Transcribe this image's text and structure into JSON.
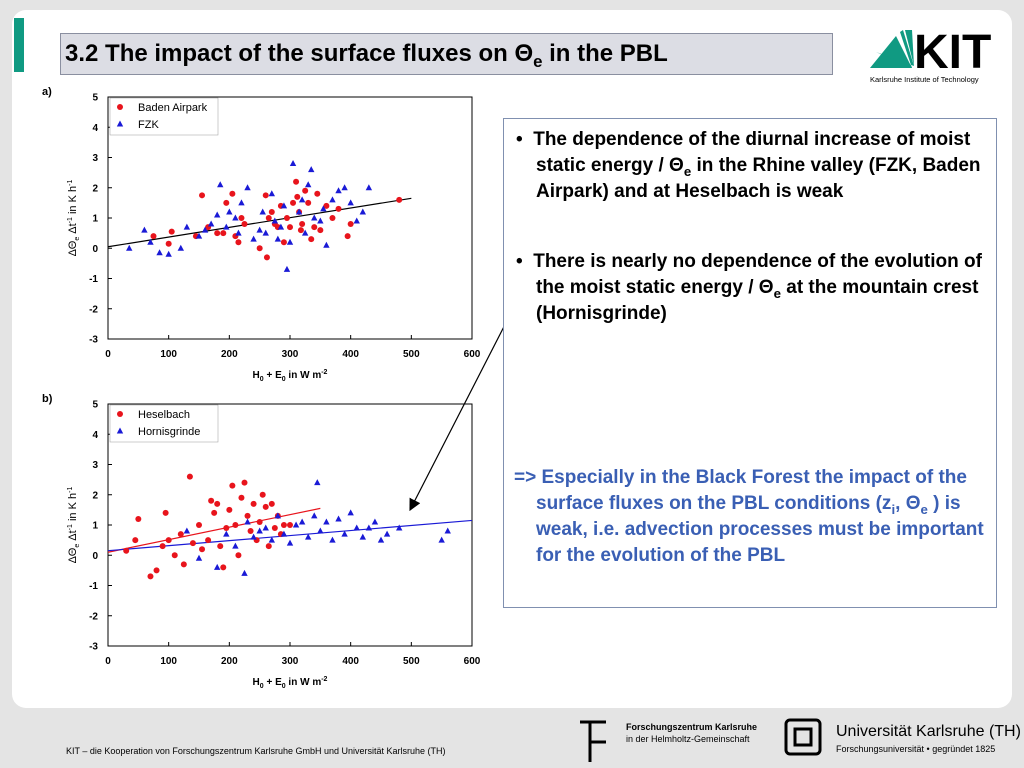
{
  "header": {
    "title": [
      {
        "text": "3.2 The impact of the surface fluxes on Θ"
      },
      {
        "text": "e",
        "shift": "sub"
      },
      {
        "text": " in the PBL"
      }
    ]
  },
  "logo": {
    "name": "KIT",
    "subtitle": "Karlsruhe Institute of Technology"
  },
  "chart_data": [
    {
      "type": "scatter",
      "panel_label": "a)",
      "x_label": [
        {
          "text": "H"
        },
        {
          "text": "0",
          "shift": "sub"
        },
        {
          "text": " + E"
        },
        {
          "text": "0",
          "shift": "sub"
        },
        {
          "text": " in W m"
        },
        {
          "text": "-2",
          "shift": "sup"
        }
      ],
      "y_label": [
        {
          "text": "ΔΘ"
        },
        {
          "text": "e",
          "shift": "sub"
        },
        {
          "text": " Δt"
        },
        {
          "text": "-1",
          "shift": "sup"
        },
        {
          "text": " in K h"
        },
        {
          "text": "-1",
          "shift": "sup"
        }
      ],
      "xlim": [
        0,
        600
      ],
      "ylim": [
        -3,
        5
      ],
      "xticks": [
        0,
        100,
        200,
        300,
        400,
        500,
        600
      ],
      "yticks": [
        -3,
        -2,
        -1,
        0,
        1,
        2,
        3,
        4,
        5
      ],
      "legend": "upper left",
      "series": [
        {
          "name": "Baden Airpark",
          "color": "#e8141c",
          "marker": "circle",
          "x": [
            75,
            100,
            105,
            145,
            155,
            165,
            180,
            190,
            195,
            205,
            210,
            215,
            220,
            225,
            250,
            260,
            262,
            265,
            270,
            275,
            280,
            285,
            290,
            295,
            300,
            305,
            310,
            312,
            315,
            318,
            320,
            325,
            330,
            335,
            340,
            345,
            350,
            360,
            370,
            380,
            395,
            400,
            480
          ],
          "values": [
            0.4,
            0.15,
            0.55,
            0.4,
            1.75,
            0.7,
            0.5,
            0.5,
            1.5,
            1.8,
            0.4,
            0.2,
            1.0,
            0.8,
            0.0,
            1.75,
            -0.3,
            1.0,
            1.2,
            0.8,
            0.7,
            1.4,
            0.2,
            1.0,
            0.7,
            1.5,
            2.2,
            1.7,
            1.2,
            0.6,
            0.8,
            1.9,
            1.5,
            0.3,
            0.7,
            1.8,
            0.6,
            1.4,
            1.0,
            1.3,
            0.4,
            0.8,
            1.6
          ]
        },
        {
          "name": "FZK",
          "color": "#1a1ad6",
          "marker": "triangle",
          "x": [
            35,
            60,
            70,
            85,
            100,
            120,
            130,
            150,
            160,
            170,
            180,
            185,
            195,
            200,
            210,
            215,
            220,
            230,
            240,
            250,
            255,
            260,
            270,
            275,
            280,
            285,
            290,
            295,
            300,
            305,
            315,
            320,
            325,
            330,
            335,
            340,
            350,
            355,
            360,
            370,
            380,
            390,
            400,
            410,
            420,
            430
          ],
          "values": [
            0.0,
            0.6,
            0.2,
            -0.15,
            -0.2,
            0.0,
            0.7,
            0.4,
            0.6,
            0.8,
            1.1,
            2.1,
            0.7,
            1.2,
            1.0,
            0.5,
            1.5,
            2.0,
            0.3,
            0.6,
            1.2,
            0.5,
            1.8,
            0.9,
            0.3,
            0.7,
            1.4,
            -0.7,
            0.2,
            2.8,
            1.2,
            1.6,
            0.5,
            2.1,
            2.6,
            1.0,
            0.9,
            1.3,
            0.1,
            1.6,
            1.9,
            2.0,
            1.5,
            0.9,
            1.2,
            2.0
          ]
        }
      ],
      "trend_lines": [
        {
          "color": "#000000",
          "x": [
            0,
            500
          ],
          "values": [
            0.05,
            1.65
          ]
        }
      ]
    },
    {
      "type": "scatter",
      "panel_label": "b)",
      "x_label": [
        {
          "text": "H"
        },
        {
          "text": "0",
          "shift": "sub"
        },
        {
          "text": " + E"
        },
        {
          "text": "0",
          "shift": "sub"
        },
        {
          "text": " in W m"
        },
        {
          "text": "-2",
          "shift": "sup"
        }
      ],
      "y_label": [
        {
          "text": "ΔΘ"
        },
        {
          "text": "e",
          "shift": "sub"
        },
        {
          "text": " Δt"
        },
        {
          "text": "-1",
          "shift": "sup"
        },
        {
          "text": " in K h"
        },
        {
          "text": "-1",
          "shift": "sup"
        }
      ],
      "xlim": [
        0,
        600
      ],
      "ylim": [
        -3,
        5
      ],
      "xticks": [
        0,
        100,
        200,
        300,
        400,
        500,
        600
      ],
      "yticks": [
        -3,
        -2,
        -1,
        0,
        1,
        2,
        3,
        4,
        5
      ],
      "legend": "upper left",
      "series": [
        {
          "name": "Heselbach",
          "color": "#e8141c",
          "marker": "circle",
          "x": [
            30,
            45,
            50,
            70,
            80,
            90,
            95,
            100,
            110,
            120,
            125,
            135,
            140,
            150,
            155,
            165,
            170,
            175,
            180,
            185,
            190,
            195,
            200,
            205,
            210,
            215,
            220,
            225,
            230,
            235,
            240,
            245,
            250,
            255,
            260,
            265,
            270,
            275,
            280,
            285,
            290,
            300
          ],
          "values": [
            0.15,
            0.5,
            1.2,
            -0.7,
            -0.5,
            0.3,
            1.4,
            0.5,
            0.0,
            0.7,
            -0.3,
            2.6,
            0.4,
            1.0,
            0.2,
            0.5,
            1.8,
            1.4,
            1.7,
            0.3,
            -0.4,
            0.9,
            1.5,
            2.3,
            1.0,
            0.0,
            1.9,
            2.4,
            1.3,
            0.8,
            1.7,
            0.5,
            1.1,
            2.0,
            1.6,
            0.3,
            1.7,
            0.9,
            1.3,
            0.7,
            1.0,
            1.0
          ]
        },
        {
          "name": "Hornisgrinde",
          "color": "#1a1ad6",
          "marker": "triangle",
          "x": [
            130,
            150,
            180,
            195,
            210,
            225,
            230,
            240,
            250,
            260,
            270,
            280,
            290,
            300,
            310,
            320,
            330,
            340,
            345,
            350,
            360,
            370,
            380,
            390,
            400,
            410,
            420,
            430,
            440,
            450,
            460,
            480,
            550,
            560
          ],
          "values": [
            0.8,
            -0.1,
            -0.4,
            0.7,
            0.3,
            -0.6,
            1.1,
            0.6,
            0.8,
            0.9,
            0.5,
            1.3,
            0.7,
            0.4,
            1.0,
            1.1,
            0.6,
            1.3,
            2.4,
            0.8,
            1.1,
            0.5,
            1.2,
            0.7,
            1.4,
            0.9,
            0.6,
            0.9,
            1.1,
            0.5,
            0.7,
            0.9,
            0.5,
            0.8
          ]
        }
      ],
      "trend_lines": [
        {
          "color": "#e8141c",
          "x": [
            0,
            350
          ],
          "values": [
            0.1,
            1.55
          ]
        },
        {
          "color": "#1a1ad6",
          "x": [
            0,
            600
          ],
          "values": [
            0.15,
            1.15
          ]
        }
      ]
    }
  ],
  "text_box": {
    "bullets": [
      [
        {
          "text": "The dependence of the diurnal increase of moist static energy / Θ"
        },
        {
          "text": "e",
          "shift": "sub"
        },
        {
          "text": " in the Rhine valley (FZK, Baden Airpark) and at Heselbach is weak"
        }
      ],
      [
        {
          "text": "There is nearly no dependence of the evolution of the moist static energy / Θ"
        },
        {
          "text": "e",
          "shift": "sub"
        },
        {
          "text": " at the mountain crest (Hornisgrinde)"
        }
      ]
    ],
    "conclusion": [
      {
        "text": "=> Especially in the Black Forest the impact of the surface fluxes on the PBL conditions (z"
      },
      {
        "text": "i",
        "shift": "sub"
      },
      {
        "text": ", Θ"
      },
      {
        "text": "e",
        "shift": "sub"
      },
      {
        "text": " ) is weak, i.e. advection processes must be important for the evolution of the PBL"
      }
    ]
  },
  "footer": {
    "text": "KIT – die Kooperation von Forschungszentrum Karlsruhe GmbH und Universität Karlsruhe (TH)",
    "fzk": [
      "Forschungszentrum Karlsruhe",
      "in der Helmholtz-Gemeinschaft"
    ],
    "uni": [
      "Universität Karlsruhe (TH)",
      "Forschungsuniversität • gegründet 1825"
    ]
  }
}
